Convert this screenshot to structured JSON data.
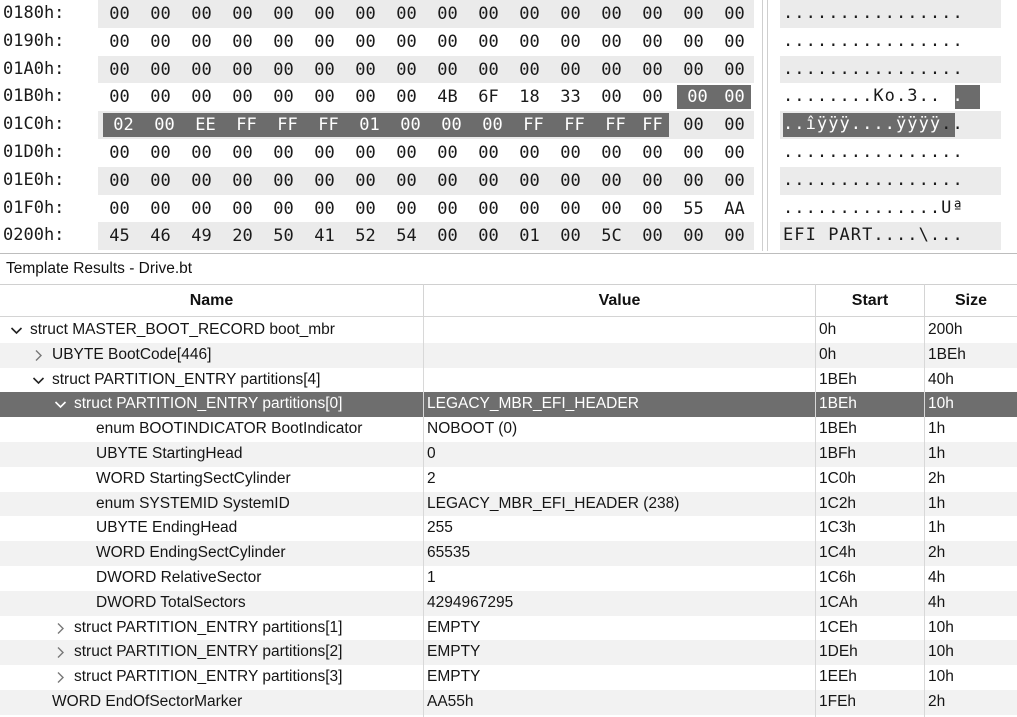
{
  "hex_view": {
    "rows": [
      {
        "addr": "0180h:",
        "bytes": [
          "00",
          "00",
          "00",
          "00",
          "00",
          "00",
          "00",
          "00",
          "00",
          "00",
          "00",
          "00",
          "00",
          "00",
          "00",
          "00"
        ],
        "ascii": "................"
      },
      {
        "addr": "0190h:",
        "bytes": [
          "00",
          "00",
          "00",
          "00",
          "00",
          "00",
          "00",
          "00",
          "00",
          "00",
          "00",
          "00",
          "00",
          "00",
          "00",
          "00"
        ],
        "ascii": "................"
      },
      {
        "addr": "01A0h:",
        "bytes": [
          "00",
          "00",
          "00",
          "00",
          "00",
          "00",
          "00",
          "00",
          "00",
          "00",
          "00",
          "00",
          "00",
          "00",
          "00",
          "00"
        ],
        "ascii": "................"
      },
      {
        "addr": "01B0h:",
        "bytes": [
          "00",
          "00",
          "00",
          "00",
          "00",
          "00",
          "00",
          "00",
          "4B",
          "6F",
          "18",
          "33",
          "00",
          "00",
          "00",
          "00"
        ],
        "ascii": "........Ko.3...."
      },
      {
        "addr": "01C0h:",
        "bytes": [
          "02",
          "00",
          "EE",
          "FF",
          "FF",
          "FF",
          "01",
          "00",
          "00",
          "00",
          "FF",
          "FF",
          "FF",
          "FF",
          "00",
          "00"
        ],
        "ascii": "..îÿÿÿ....ÿÿÿÿ.."
      },
      {
        "addr": "01D0h:",
        "bytes": [
          "00",
          "00",
          "00",
          "00",
          "00",
          "00",
          "00",
          "00",
          "00",
          "00",
          "00",
          "00",
          "00",
          "00",
          "00",
          "00"
        ],
        "ascii": "................"
      },
      {
        "addr": "01E0h:",
        "bytes": [
          "00",
          "00",
          "00",
          "00",
          "00",
          "00",
          "00",
          "00",
          "00",
          "00",
          "00",
          "00",
          "00",
          "00",
          "00",
          "00"
        ],
        "ascii": "................"
      },
      {
        "addr": "01F0h:",
        "bytes": [
          "00",
          "00",
          "00",
          "00",
          "00",
          "00",
          "00",
          "00",
          "00",
          "00",
          "00",
          "00",
          "00",
          "00",
          "55",
          "AA"
        ],
        "ascii": "..............Uª"
      },
      {
        "addr": "0200h:",
        "bytes": [
          "45",
          "46",
          "49",
          "20",
          "50",
          "41",
          "52",
          "54",
          "00",
          "00",
          "01",
          "00",
          "5C",
          "00",
          "00",
          "00"
        ],
        "ascii": "EFI PART....\\..."
      }
    ]
  },
  "template_panel": {
    "title": "Template Results - Drive.bt",
    "columns": {
      "name": "Name",
      "value": "Value",
      "start": "Start",
      "size": "Size"
    },
    "rows": [
      {
        "name": "struct MASTER_BOOT_RECORD boot_mbr",
        "value": "",
        "start": "0h",
        "size": "200h",
        "indent": 0,
        "toggle": "expanded"
      },
      {
        "name": "UBYTE BootCode[446]",
        "value": "",
        "start": "0h",
        "size": "1BEh",
        "indent": 1,
        "toggle": "collapsed"
      },
      {
        "name": "struct PARTITION_ENTRY partitions[4]",
        "value": "",
        "start": "1BEh",
        "size": "40h",
        "indent": 1,
        "toggle": "expanded"
      },
      {
        "name": "struct PARTITION_ENTRY partitions[0]",
        "value": "LEGACY_MBR_EFI_HEADER",
        "start": "1BEh",
        "size": "10h",
        "indent": 2,
        "toggle": "expanded",
        "selected": true
      },
      {
        "name": "enum BOOTINDICATOR BootIndicator",
        "value": "NOBOOT (0)",
        "start": "1BEh",
        "size": "1h",
        "indent": 3,
        "toggle": "none"
      },
      {
        "name": "UBYTE StartingHead",
        "value": "0",
        "start": "1BFh",
        "size": "1h",
        "indent": 3,
        "toggle": "none"
      },
      {
        "name": "WORD StartingSectCylinder",
        "value": "2",
        "start": "1C0h",
        "size": "2h",
        "indent": 3,
        "toggle": "none"
      },
      {
        "name": "enum SYSTEMID SystemID",
        "value": "LEGACY_MBR_EFI_HEADER (238)",
        "start": "1C2h",
        "size": "1h",
        "indent": 3,
        "toggle": "none"
      },
      {
        "name": "UBYTE EndingHead",
        "value": "255",
        "start": "1C3h",
        "size": "1h",
        "indent": 3,
        "toggle": "none"
      },
      {
        "name": "WORD EndingSectCylinder",
        "value": "65535",
        "start": "1C4h",
        "size": "2h",
        "indent": 3,
        "toggle": "none"
      },
      {
        "name": "DWORD RelativeSector",
        "value": "1",
        "start": "1C6h",
        "size": "4h",
        "indent": 3,
        "toggle": "none"
      },
      {
        "name": "DWORD TotalSectors",
        "value": "4294967295",
        "start": "1CAh",
        "size": "4h",
        "indent": 3,
        "toggle": "none"
      },
      {
        "name": "struct PARTITION_ENTRY partitions[1]",
        "value": "EMPTY",
        "start": "1CEh",
        "size": "10h",
        "indent": 2,
        "toggle": "collapsed"
      },
      {
        "name": "struct PARTITION_ENTRY partitions[2]",
        "value": "EMPTY",
        "start": "1DEh",
        "size": "10h",
        "indent": 2,
        "toggle": "collapsed"
      },
      {
        "name": "struct PARTITION_ENTRY partitions[3]",
        "value": "EMPTY",
        "start": "1EEh",
        "size": "10h",
        "indent": 2,
        "toggle": "collapsed"
      },
      {
        "name": "WORD EndOfSectorMarker",
        "value": "AA55h",
        "start": "1FEh",
        "size": "2h",
        "indent": 1,
        "toggle": "none"
      }
    ]
  },
  "icons": {
    "expanded": "chevron-down-icon",
    "collapsed": "chevron-right-icon"
  },
  "colors": {
    "selection": "#6c6c6c",
    "alt_row": "#ebebeb",
    "text": "#141414"
  }
}
